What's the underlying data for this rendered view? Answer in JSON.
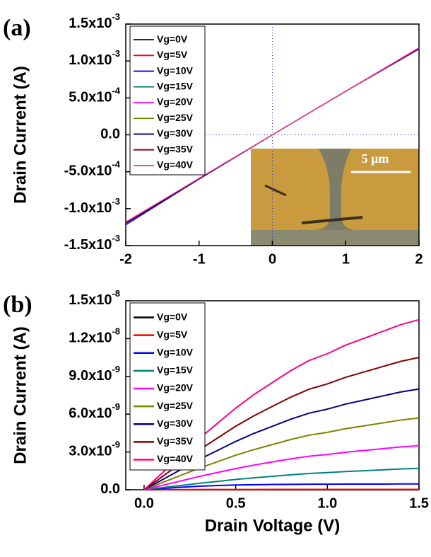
{
  "chart_data": [
    {
      "type": "line",
      "panel_label": "(a)",
      "y_label": "Drain Current (A)",
      "inset_label": "5 μm",
      "zero_lines": true,
      "xlim": [
        -2,
        2
      ],
      "xticks": [
        -2,
        -1,
        0,
        1,
        2
      ],
      "ylim": [
        -0.0015,
        0.0015
      ],
      "yticks": [
        {
          "value": -0.0015,
          "label": "-1.5x10",
          "exponent": "-3"
        },
        {
          "value": -0.001,
          "label": "-1.0x10",
          "exponent": "-3"
        },
        {
          "value": -0.0005,
          "label": "-5.0x10",
          "exponent": "-4"
        },
        {
          "value": 0,
          "label": "0.0"
        },
        {
          "value": 0.0005,
          "label": "5.0x10",
          "exponent": "-4"
        },
        {
          "value": 0.001,
          "label": "1.0x10",
          "exponent": "-3"
        },
        {
          "value": 0.0015,
          "label": "1.5x10",
          "exponent": "-3"
        }
      ],
      "x": [
        -2,
        -1,
        0,
        1,
        2
      ],
      "series": [
        {
          "name": "Vg=0V",
          "color": "#000000",
          "values": [
            -0.00119,
            -0.00059,
            0,
            0.00059,
            0.00117
          ]
        },
        {
          "name": "Vg=5V",
          "color": "#ff0000",
          "values": [
            -0.0012,
            -0.0006,
            0,
            0.00059,
            0.00117
          ]
        },
        {
          "name": "Vg=10V",
          "color": "#0000ff",
          "values": [
            -0.00122,
            -0.0006,
            0,
            0.00059,
            0.00116
          ]
        },
        {
          "name": "Vg=15V",
          "color": "#008080",
          "values": [
            -0.0012,
            -0.0006,
            0,
            0.00059,
            0.00117
          ]
        },
        {
          "name": "Vg=20V",
          "color": "#ff00ff",
          "values": [
            -0.00119,
            -0.00059,
            0,
            0.00059,
            0.00118
          ]
        },
        {
          "name": "Vg=25V",
          "color": "#808000",
          "values": [
            -0.00119,
            -0.00059,
            0,
            0.00059,
            0.00117
          ]
        },
        {
          "name": "Vg=30V",
          "color": "#000080",
          "values": [
            -0.0012,
            -0.0006,
            0,
            0.00059,
            0.00117
          ]
        },
        {
          "name": "Vg=35V",
          "color": "#800000",
          "values": [
            -0.00119,
            -0.00059,
            0,
            0.00059,
            0.00117
          ]
        },
        {
          "name": "Vg=40V",
          "color": "#ff3399",
          "values": [
            -0.00118,
            -0.00059,
            0,
            0.00059,
            0.00118
          ]
        }
      ]
    },
    {
      "type": "line",
      "panel_label": "(b)",
      "y_label": "Drain Current (A)",
      "x_label": "Drain Voltage (V)",
      "xlim": [
        -0.1,
        1.5
      ],
      "xticks": [
        {
          "value": 0,
          "label": "0.0"
        },
        0.5,
        {
          "value": 1,
          "label": "1.0"
        },
        1.5
      ],
      "ylim": [
        0,
        1.5e-08
      ],
      "yticks": [
        {
          "value": 0,
          "label": "0.0"
        },
        {
          "value": 3e-09,
          "label": "3.0x10",
          "exponent": "-9"
        },
        {
          "value": 6e-09,
          "label": "6.0x10",
          "exponent": "-9"
        },
        {
          "value": 9e-09,
          "label": "9.0x10",
          "exponent": "-9"
        },
        {
          "value": 1.2e-08,
          "label": "1.2x10",
          "exponent": "-8"
        },
        {
          "value": 1.5e-08,
          "label": "1.5x10",
          "exponent": "-8"
        }
      ],
      "x": [
        0,
        0.1,
        0.2,
        0.3,
        0.4,
        0.5,
        0.6,
        0.7,
        0.8,
        0.9,
        1.0,
        1.1,
        1.2,
        1.3,
        1.4,
        1.5
      ],
      "series": [
        {
          "name": "Vg=0V",
          "color": "#000000",
          "values": [
            0,
            0,
            0,
            0,
            0,
            0,
            0,
            0,
            0,
            0,
            0,
            0,
            0,
            0,
            0,
            0
          ]
        },
        {
          "name": "Vg=5V",
          "color": "#ff0000",
          "values": [
            0,
            1e-11,
            1e-11,
            2e-11,
            2e-11,
            2e-11,
            2e-11,
            3e-11,
            3e-11,
            3e-11,
            3e-11,
            3e-11,
            3e-11,
            3e-11,
            3e-11,
            3e-11
          ]
        },
        {
          "name": "Vg=10V",
          "color": "#0000ff",
          "values": [
            0,
            1e-10,
            2e-10,
            2.8e-10,
            3.4e-10,
            3.8e-10,
            4e-10,
            4.2e-10,
            4.3e-10,
            4.4e-10,
            4.4e-10,
            4.5e-10,
            4.5e-10,
            4.5e-10,
            4.6e-10,
            4.6e-10
          ]
        },
        {
          "name": "Vg=15V",
          "color": "#008080",
          "values": [
            0,
            1.7e-10,
            3.4e-10,
            5.1e-10,
            6.6e-10,
            8.2e-10,
            9.5e-10,
            1.07e-09,
            1.19e-09,
            1.29e-09,
            1.36e-09,
            1.45e-09,
            1.51e-09,
            1.58e-09,
            1.65e-09,
            1.7e-09
          ]
        },
        {
          "name": "Vg=20V",
          "color": "#ff00ff",
          "values": [
            0,
            3.5e-10,
            7e-10,
            1.05e-09,
            1.37e-09,
            1.68e-09,
            1.96e-09,
            2.21e-09,
            2.45e-09,
            2.66e-09,
            2.8e-09,
            2.98e-09,
            3.12e-09,
            3.26e-09,
            3.4e-09,
            3.5e-09
          ]
        },
        {
          "name": "Vg=25V",
          "color": "#808000",
          "values": [
            0,
            5.7e-10,
            1.14e-09,
            1.71e-09,
            2.22e-09,
            2.74e-09,
            3.19e-09,
            3.59e-09,
            3.99e-09,
            4.33e-09,
            4.56e-09,
            4.85e-09,
            5.07e-09,
            5.3e-09,
            5.53e-09,
            5.7e-09
          ]
        },
        {
          "name": "Vg=30V",
          "color": "#000080",
          "values": [
            0,
            8e-10,
            1.6e-09,
            2.4e-09,
            3.12e-09,
            3.84e-09,
            4.48e-09,
            5.04e-09,
            5.6e-09,
            6.08e-09,
            6.4e-09,
            6.8e-09,
            7.12e-09,
            7.44e-09,
            7.76e-09,
            8e-09
          ]
        },
        {
          "name": "Vg=35V",
          "color": "#800000",
          "values": [
            0,
            1.05e-09,
            2.1e-09,
            3.15e-09,
            4.1e-09,
            5.04e-09,
            5.88e-09,
            6.62e-09,
            7.35e-09,
            7.98e-09,
            8.4e-09,
            8.93e-09,
            9.35e-09,
            9.77e-09,
            1.019e-08,
            1.05e-08
          ]
        },
        {
          "name": "Vg=40V",
          "color": "#ff0080",
          "values": [
            0,
            1.35e-09,
            2.7e-09,
            4.05e-09,
            5.27e-09,
            6.48e-09,
            7.56e-09,
            8.51e-09,
            9.45e-09,
            1.026e-08,
            1.08e-08,
            1.148e-08,
            1.202e-08,
            1.256e-08,
            1.31e-08,
            1.35e-08
          ]
        }
      ]
    }
  ]
}
